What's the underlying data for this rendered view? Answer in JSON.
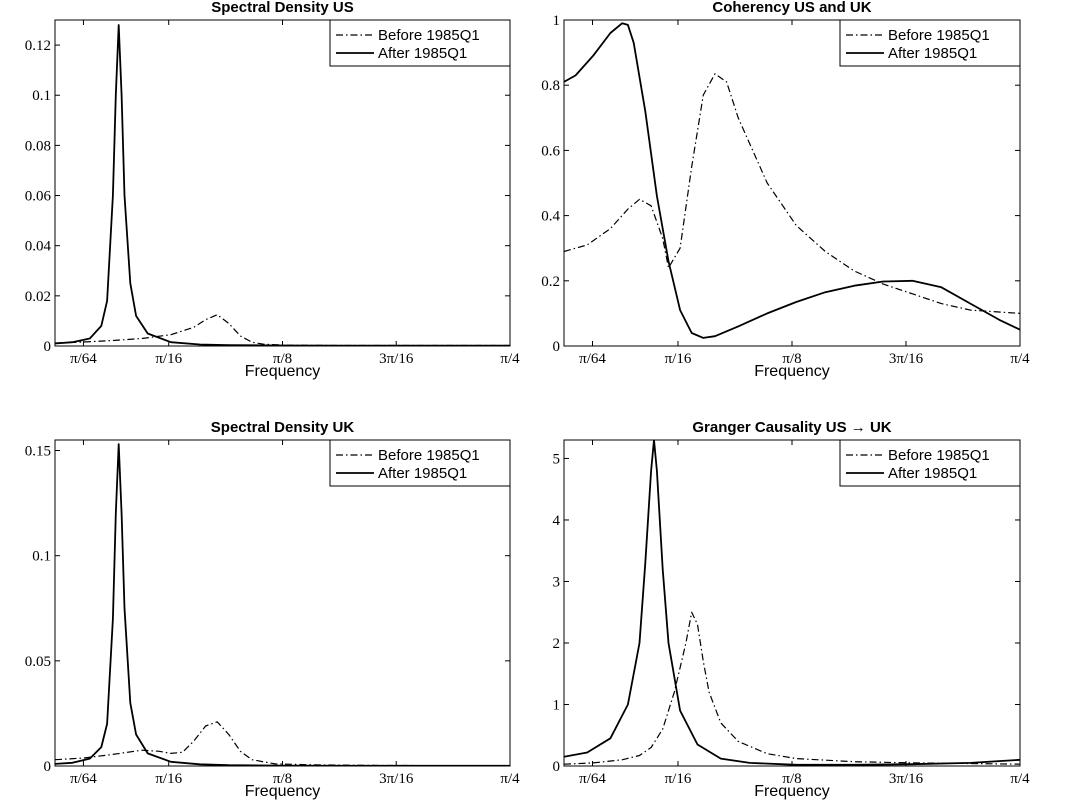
{
  "chart_data": [
    {
      "type": "line",
      "title": "Spectral Density US",
      "xlabel": "Frequency",
      "ylabel": "",
      "xlim": [
        0.0,
        0.7854
      ],
      "ylim": [
        0,
        0.13
      ],
      "x_ticks": [
        {
          "value": 0.0491,
          "label": "π/64"
        },
        {
          "value": 0.1963,
          "label": "π/16"
        },
        {
          "value": 0.3927,
          "label": "π/8"
        },
        {
          "value": 0.589,
          "label": "3π/16"
        },
        {
          "value": 0.7854,
          "label": "π/4"
        }
      ],
      "y_ticks": [
        {
          "value": 0,
          "label": "0"
        },
        {
          "value": 0.02,
          "label": "0.02"
        },
        {
          "value": 0.04,
          "label": "0.04"
        },
        {
          "value": 0.06,
          "label": "0.06"
        },
        {
          "value": 0.08,
          "label": "0.08"
        },
        {
          "value": 0.1,
          "label": "0.1"
        },
        {
          "value": 0.12,
          "label": "0.12"
        }
      ],
      "legend_position": "top-right",
      "grid": false,
      "series": [
        {
          "name": "Before 1985Q1",
          "style": "dashdot",
          "x": [
            0.0,
            0.05,
            0.1,
            0.15,
            0.2,
            0.24,
            0.26,
            0.28,
            0.3,
            0.32,
            0.34,
            0.36,
            0.4,
            0.5,
            0.6,
            0.7,
            0.7854
          ],
          "y": [
            0.0012,
            0.0016,
            0.0022,
            0.003,
            0.0045,
            0.0075,
            0.0105,
            0.0125,
            0.009,
            0.004,
            0.0015,
            0.0007,
            0.0003,
            0.0002,
            0.0002,
            0.0002,
            0.0002
          ]
        },
        {
          "name": "After 1985Q1",
          "style": "solid",
          "x": [
            0.0,
            0.03,
            0.06,
            0.08,
            0.09,
            0.1,
            0.105,
            0.11,
            0.115,
            0.12,
            0.13,
            0.14,
            0.16,
            0.2,
            0.25,
            0.3,
            0.4,
            0.5,
            0.6,
            0.7,
            0.7854
          ],
          "y": [
            0.001,
            0.0015,
            0.003,
            0.008,
            0.018,
            0.06,
            0.1,
            0.128,
            0.1,
            0.06,
            0.025,
            0.012,
            0.005,
            0.0015,
            0.0006,
            0.0003,
            0.0002,
            0.0001,
            0.0001,
            0.0001,
            0.0001
          ]
        }
      ]
    },
    {
      "type": "line",
      "title": "Coherency US and UK",
      "xlabel": "Frequency",
      "ylabel": "",
      "xlim": [
        0.0,
        0.7854
      ],
      "ylim": [
        0,
        1.0
      ],
      "x_ticks": [
        {
          "value": 0.0491,
          "label": "π/64"
        },
        {
          "value": 0.1963,
          "label": "π/16"
        },
        {
          "value": 0.3927,
          "label": "π/8"
        },
        {
          "value": 0.589,
          "label": "3π/16"
        },
        {
          "value": 0.7854,
          "label": "π/4"
        }
      ],
      "y_ticks": [
        {
          "value": 0,
          "label": "0"
        },
        {
          "value": 0.2,
          "label": "0.2"
        },
        {
          "value": 0.4,
          "label": "0.4"
        },
        {
          "value": 0.6,
          "label": "0.6"
        },
        {
          "value": 0.8,
          "label": "0.8"
        },
        {
          "value": 1.0,
          "label": "1"
        }
      ],
      "legend_position": "top-right",
      "grid": false,
      "series": [
        {
          "name": "Before 1985Q1",
          "style": "dashdot",
          "x": [
            0.0,
            0.04,
            0.08,
            0.11,
            0.13,
            0.15,
            0.17,
            0.18,
            0.2,
            0.22,
            0.24,
            0.26,
            0.28,
            0.3,
            0.35,
            0.4,
            0.45,
            0.5,
            0.55,
            0.6,
            0.65,
            0.7,
            0.7854
          ],
          "y": [
            0.29,
            0.31,
            0.36,
            0.42,
            0.45,
            0.43,
            0.33,
            0.24,
            0.3,
            0.55,
            0.77,
            0.835,
            0.81,
            0.7,
            0.5,
            0.37,
            0.29,
            0.23,
            0.19,
            0.16,
            0.13,
            0.11,
            0.1
          ]
        },
        {
          "name": "After 1985Q1",
          "style": "solid",
          "x": [
            0.0,
            0.02,
            0.05,
            0.08,
            0.1,
            0.11,
            0.12,
            0.14,
            0.16,
            0.18,
            0.2,
            0.22,
            0.24,
            0.26,
            0.3,
            0.35,
            0.4,
            0.45,
            0.5,
            0.55,
            0.6,
            0.65,
            0.7,
            0.75,
            0.7854
          ],
          "y": [
            0.81,
            0.83,
            0.89,
            0.96,
            0.99,
            0.985,
            0.93,
            0.72,
            0.46,
            0.26,
            0.11,
            0.04,
            0.025,
            0.03,
            0.06,
            0.1,
            0.135,
            0.165,
            0.185,
            0.198,
            0.2,
            0.18,
            0.13,
            0.08,
            0.05
          ]
        }
      ]
    },
    {
      "type": "line",
      "title": "Spectral Density UK",
      "xlabel": "Frequency",
      "ylabel": "",
      "xlim": [
        0.0,
        0.7854
      ],
      "ylim": [
        0,
        0.155
      ],
      "x_ticks": [
        {
          "value": 0.0491,
          "label": "π/64"
        },
        {
          "value": 0.1963,
          "label": "π/16"
        },
        {
          "value": 0.3927,
          "label": "π/8"
        },
        {
          "value": 0.589,
          "label": "3π/16"
        },
        {
          "value": 0.7854,
          "label": "π/4"
        }
      ],
      "y_ticks": [
        {
          "value": 0,
          "label": "0"
        },
        {
          "value": 0.05,
          "label": "0.05"
        },
        {
          "value": 0.1,
          "label": "0.1"
        },
        {
          "value": 0.15,
          "label": "0.15"
        }
      ],
      "legend_position": "top-right",
      "grid": false,
      "series": [
        {
          "name": "Before 1985Q1",
          "style": "dashdot",
          "x": [
            0.0,
            0.05,
            0.1,
            0.15,
            0.18,
            0.2,
            0.22,
            0.24,
            0.26,
            0.28,
            0.3,
            0.32,
            0.34,
            0.38,
            0.45,
            0.55,
            0.65,
            0.7854
          ],
          "y": [
            0.003,
            0.0038,
            0.0055,
            0.0075,
            0.007,
            0.006,
            0.0065,
            0.012,
            0.019,
            0.021,
            0.015,
            0.007,
            0.003,
            0.001,
            0.0005,
            0.0003,
            0.0002,
            0.0002
          ]
        },
        {
          "name": "After 1985Q1",
          "style": "solid",
          "x": [
            0.0,
            0.03,
            0.06,
            0.08,
            0.09,
            0.1,
            0.105,
            0.11,
            0.115,
            0.12,
            0.13,
            0.14,
            0.16,
            0.2,
            0.25,
            0.3,
            0.4,
            0.5,
            0.6,
            0.7,
            0.7854
          ],
          "y": [
            0.001,
            0.0015,
            0.0035,
            0.009,
            0.02,
            0.07,
            0.12,
            0.153,
            0.12,
            0.075,
            0.03,
            0.015,
            0.006,
            0.002,
            0.0008,
            0.0004,
            0.0002,
            0.0001,
            0.0001,
            0.0001,
            0.0001
          ]
        }
      ]
    },
    {
      "type": "line",
      "title": "Granger Causality US → UK",
      "xlabel": "Frequency",
      "ylabel": "",
      "xlim": [
        0.0,
        0.7854
      ],
      "ylim": [
        0,
        5.3
      ],
      "x_ticks": [
        {
          "value": 0.0491,
          "label": "π/64"
        },
        {
          "value": 0.1963,
          "label": "π/16"
        },
        {
          "value": 0.3927,
          "label": "π/8"
        },
        {
          "value": 0.589,
          "label": "3π/16"
        },
        {
          "value": 0.7854,
          "label": "π/4"
        }
      ],
      "y_ticks": [
        {
          "value": 0,
          "label": "0"
        },
        {
          "value": 1,
          "label": "1"
        },
        {
          "value": 2,
          "label": "2"
        },
        {
          "value": 3,
          "label": "3"
        },
        {
          "value": 4,
          "label": "4"
        },
        {
          "value": 5,
          "label": "5"
        }
      ],
      "legend_position": "top-right",
      "grid": false,
      "series": [
        {
          "name": "Before 1985Q1",
          "style": "dashdot",
          "x": [
            0.0,
            0.05,
            0.1,
            0.13,
            0.15,
            0.17,
            0.19,
            0.21,
            0.22,
            0.23,
            0.24,
            0.25,
            0.27,
            0.3,
            0.35,
            0.4,
            0.5,
            0.6,
            0.7,
            0.7854
          ],
          "y": [
            0.03,
            0.05,
            0.1,
            0.17,
            0.3,
            0.6,
            1.2,
            2.0,
            2.5,
            2.3,
            1.7,
            1.2,
            0.7,
            0.4,
            0.2,
            0.12,
            0.07,
            0.05,
            0.04,
            0.03
          ]
        },
        {
          "name": "After 1985Q1",
          "style": "solid",
          "x": [
            0.0,
            0.04,
            0.08,
            0.11,
            0.13,
            0.14,
            0.15,
            0.155,
            0.16,
            0.17,
            0.18,
            0.2,
            0.23,
            0.27,
            0.32,
            0.4,
            0.5,
            0.6,
            0.7,
            0.7854
          ],
          "y": [
            0.15,
            0.22,
            0.45,
            1.0,
            2.0,
            3.3,
            4.8,
            5.3,
            4.8,
            3.2,
            2.0,
            0.9,
            0.35,
            0.12,
            0.05,
            0.02,
            0.02,
            0.03,
            0.05,
            0.1
          ]
        }
      ]
    }
  ]
}
